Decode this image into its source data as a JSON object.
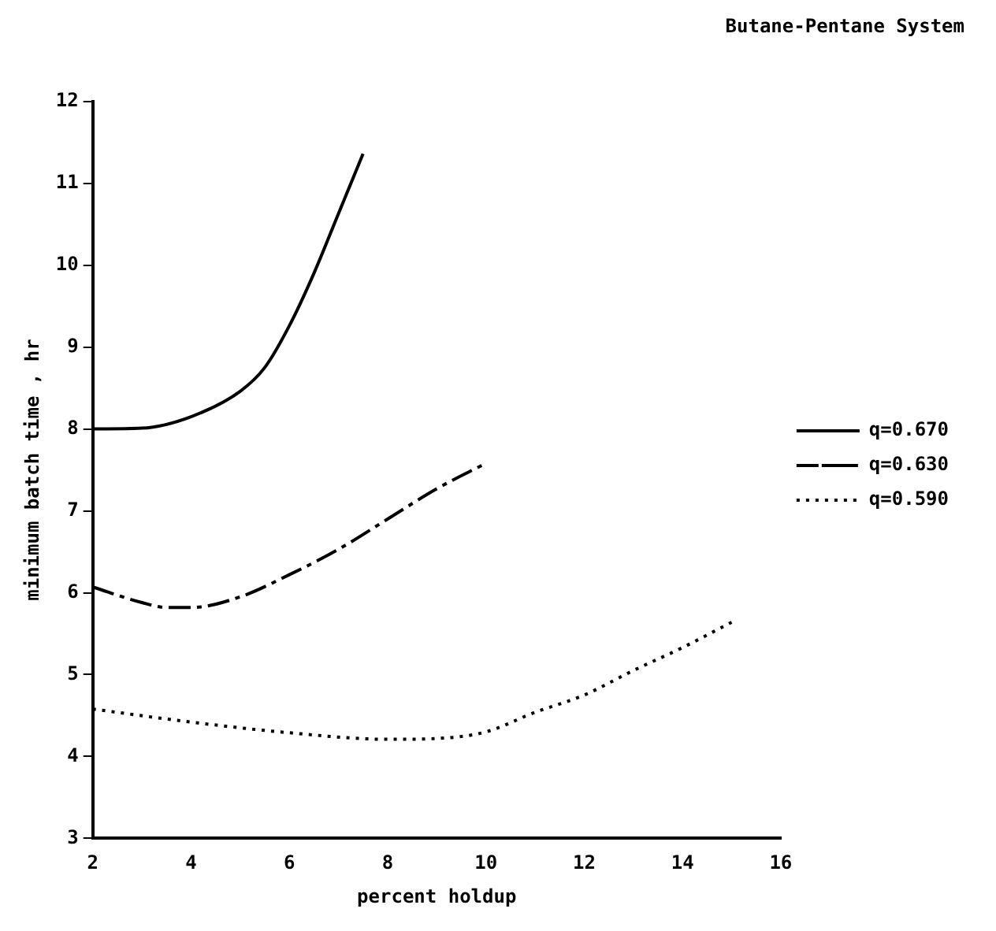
{
  "chart_data": {
    "type": "line",
    "title": "Butane-Pentane System",
    "xlabel": "percent holdup",
    "ylabel": "minimum batch time , hr",
    "xlim": [
      2,
      16
    ],
    "xticks": [
      2,
      4,
      6,
      8,
      10,
      12,
      14,
      16
    ],
    "ylim": [
      3,
      12
    ],
    "yticks": [
      3,
      4,
      5,
      6,
      7,
      8,
      9,
      10,
      11,
      12
    ],
    "grid": false,
    "legend": "right",
    "marker": "none",
    "series": [
      {
        "name": "q=0.670",
        "color": "#000000",
        "line_style": "solid",
        "x": [
          2,
          3,
          4,
          5,
          5.5,
          6,
          6.5,
          7,
          7.5
        ],
        "values": [
          8.0,
          8.01,
          8.15,
          8.46,
          8.75,
          9.26,
          9.9,
          10.63,
          11.36
        ]
      },
      {
        "name": "q=0.630",
        "color": "#000000",
        "line_style": "dashed",
        "x": [
          2,
          3,
          3.5,
          4,
          5,
          6,
          7,
          8,
          9,
          10
        ],
        "values": [
          6.07,
          5.88,
          5.82,
          5.82,
          5.95,
          6.22,
          6.53,
          6.9,
          7.27,
          7.58
        ]
      },
      {
        "name": "q=0.590",
        "color": "#000000",
        "line_style": "dotted",
        "x": [
          2,
          4,
          6,
          8,
          9,
          10,
          11,
          12,
          13,
          14,
          15
        ],
        "values": [
          4.58,
          4.42,
          4.29,
          4.21,
          4.22,
          4.3,
          4.54,
          4.75,
          5.05,
          5.33,
          5.64
        ]
      }
    ]
  }
}
